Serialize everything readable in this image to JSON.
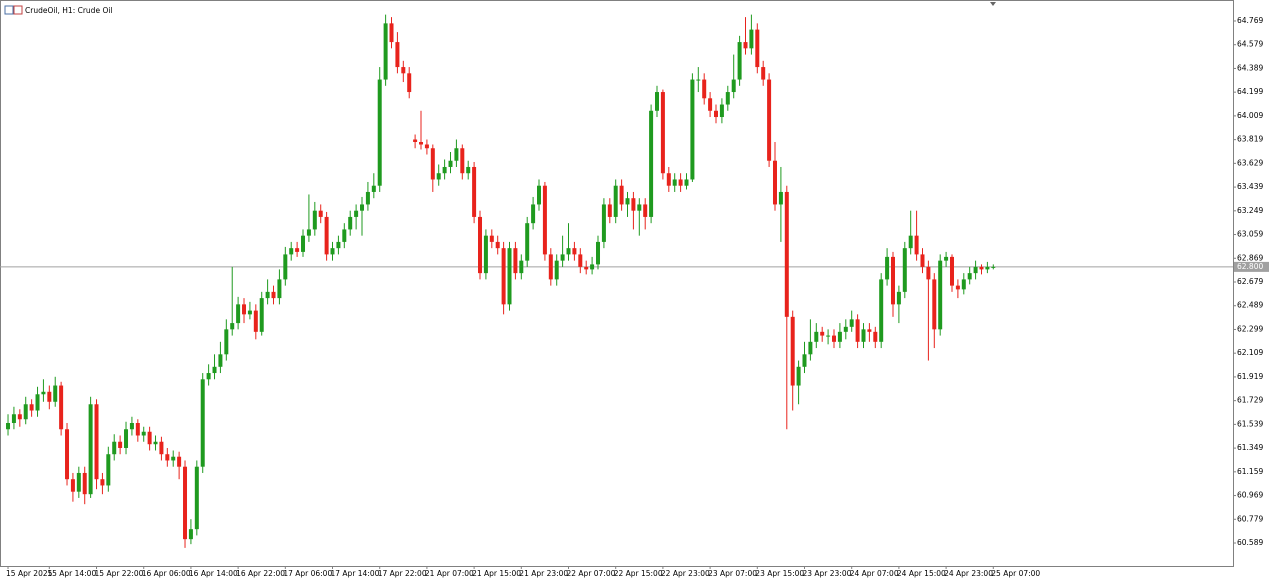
{
  "chart_data": {
    "type": "candlestick",
    "title": "CrudeOil, H1:  Crude Oil",
    "up_color": "#1f9a1f",
    "down_color": "#e8231c",
    "price_line_color": "#a0a0a0",
    "ylim": [
      60.405,
      64.937
    ],
    "xlim": [
      -1.36,
      207.63
    ],
    "yticks": [
      64.769,
      64.579,
      64.389,
      64.199,
      64.009,
      63.819,
      63.629,
      63.439,
      63.249,
      63.059,
      62.869,
      62.679,
      62.489,
      62.299,
      62.109,
      61.919,
      61.729,
      61.539,
      61.349,
      61.159,
      60.969,
      60.779,
      60.589
    ],
    "xticks": [
      {
        "value": 0,
        "label": "15 Apr 2025"
      },
      {
        "value": 7,
        "label": "15 Apr 14:00"
      },
      {
        "value": 15,
        "label": "15 Apr 22:00"
      },
      {
        "value": 23,
        "label": "16 Apr 06:00"
      },
      {
        "value": 31,
        "label": "16 Apr 14:00"
      },
      {
        "value": 39,
        "label": "16 Apr 22:00"
      },
      {
        "value": 47,
        "label": "17 Apr 06:00"
      },
      {
        "value": 55,
        "label": "17 Apr 14:00"
      },
      {
        "value": 63,
        "label": "17 Apr 22:00"
      },
      {
        "value": 71,
        "label": "21 Apr 07:00"
      },
      {
        "value": 79,
        "label": "21 Apr 15:00"
      },
      {
        "value": 87,
        "label": "21 Apr 23:00"
      },
      {
        "value": 95,
        "label": "22 Apr 07:00"
      },
      {
        "value": 103,
        "label": "22 Apr 15:00"
      },
      {
        "value": 111,
        "label": "22 Apr 23:00"
      },
      {
        "value": 119,
        "label": "23 Apr 07:00"
      },
      {
        "value": 127,
        "label": "23 Apr 15:00"
      },
      {
        "value": 135,
        "label": "23 Apr 23:00"
      },
      {
        "value": 143,
        "label": "24 Apr 07:00"
      },
      {
        "value": 151,
        "label": "24 Apr 15:00"
      },
      {
        "value": 159,
        "label": "24 Apr 23:00"
      },
      {
        "value": 167,
        "label": "25 Apr 07:00"
      }
    ],
    "price_line": {
      "value": 62.8,
      "label": "62.800"
    },
    "candles": [
      [
        61.5,
        61.62,
        61.45,
        61.55
      ],
      [
        61.55,
        61.68,
        61.5,
        61.62
      ],
      [
        61.62,
        61.66,
        61.52,
        61.58
      ],
      [
        61.58,
        61.76,
        61.54,
        61.7
      ],
      [
        61.7,
        61.74,
        61.6,
        61.65
      ],
      [
        61.65,
        61.84,
        61.6,
        61.78
      ],
      [
        61.78,
        61.9,
        61.72,
        61.8
      ],
      [
        61.8,
        61.85,
        61.66,
        61.72
      ],
      [
        61.72,
        61.92,
        61.68,
        61.85
      ],
      [
        61.85,
        61.88,
        61.45,
        61.5
      ],
      [
        61.5,
        61.55,
        61.05,
        61.1
      ],
      [
        61.1,
        61.15,
        60.92,
        61.0
      ],
      [
        61.0,
        61.2,
        60.95,
        61.15
      ],
      [
        61.15,
        61.2,
        60.9,
        60.98
      ],
      [
        60.98,
        61.76,
        60.95,
        61.7
      ],
      [
        61.7,
        61.74,
        61.02,
        61.1
      ],
      [
        61.1,
        61.15,
        60.98,
        61.05
      ],
      [
        61.05,
        61.36,
        61.0,
        61.3
      ],
      [
        61.3,
        61.46,
        61.25,
        61.4
      ],
      [
        61.4,
        61.45,
        61.3,
        61.35
      ],
      [
        61.35,
        61.56,
        61.3,
        61.5
      ],
      [
        61.5,
        61.6,
        61.45,
        61.55
      ],
      [
        61.55,
        61.58,
        61.4,
        61.45
      ],
      [
        61.45,
        61.52,
        61.4,
        61.48
      ],
      [
        61.48,
        61.52,
        61.33,
        61.38
      ],
      [
        61.38,
        61.45,
        61.33,
        61.4
      ],
      [
        61.4,
        61.44,
        61.25,
        61.3
      ],
      [
        61.3,
        61.35,
        61.2,
        61.25
      ],
      [
        61.25,
        61.33,
        61.2,
        61.28
      ],
      [
        61.28,
        61.32,
        61.1,
        61.2
      ],
      [
        61.2,
        61.25,
        60.55,
        60.62
      ],
      [
        60.62,
        60.78,
        60.58,
        60.7
      ],
      [
        60.7,
        61.25,
        60.65,
        61.2
      ],
      [
        61.2,
        61.95,
        61.15,
        61.9
      ],
      [
        61.9,
        62.02,
        61.85,
        61.95
      ],
      [
        61.95,
        62.1,
        61.9,
        62.0
      ],
      [
        62.0,
        62.2,
        61.95,
        62.1
      ],
      [
        62.1,
        62.38,
        62.05,
        62.3
      ],
      [
        62.3,
        62.8,
        62.25,
        62.35
      ],
      [
        62.35,
        62.56,
        62.3,
        62.5
      ],
      [
        62.5,
        62.55,
        62.35,
        62.42
      ],
      [
        62.42,
        62.52,
        62.38,
        62.45
      ],
      [
        62.45,
        62.5,
        62.22,
        62.28
      ],
      [
        62.28,
        62.6,
        62.25,
        62.55
      ],
      [
        62.55,
        62.7,
        62.5,
        62.6
      ],
      [
        62.6,
        62.65,
        62.5,
        62.55
      ],
      [
        62.55,
        62.78,
        62.5,
        62.7
      ],
      [
        62.7,
        62.96,
        62.65,
        62.9
      ],
      [
        62.9,
        63.0,
        62.85,
        62.95
      ],
      [
        62.95,
        63.0,
        62.88,
        62.92
      ],
      [
        62.92,
        63.1,
        62.88,
        63.05
      ],
      [
        63.05,
        63.38,
        63.0,
        63.1
      ],
      [
        63.1,
        63.32,
        63.05,
        63.25
      ],
      [
        63.25,
        63.3,
        63.15,
        63.2
      ],
      [
        63.2,
        63.24,
        62.85,
        62.9
      ],
      [
        62.9,
        63.0,
        62.85,
        62.95
      ],
      [
        62.95,
        63.05,
        62.9,
        63.0
      ],
      [
        63.0,
        63.15,
        62.95,
        63.1
      ],
      [
        63.1,
        63.25,
        63.05,
        63.2
      ],
      [
        63.2,
        63.3,
        63.1,
        63.25
      ],
      [
        63.25,
        63.36,
        63.05,
        63.3
      ],
      [
        63.3,
        63.48,
        63.25,
        63.4
      ],
      [
        63.4,
        63.55,
        63.35,
        63.45
      ],
      [
        63.45,
        64.4,
        63.4,
        64.3
      ],
      [
        64.3,
        64.82,
        64.25,
        64.75
      ],
      [
        64.75,
        64.8,
        64.55,
        64.6
      ],
      [
        64.6,
        64.68,
        64.35,
        64.4
      ],
      [
        64.4,
        64.45,
        64.28,
        64.35
      ],
      [
        64.35,
        64.4,
        64.15,
        64.2
      ],
      [
        63.82,
        63.86,
        63.75,
        63.8
      ],
      [
        63.8,
        64.05,
        63.74,
        63.78
      ],
      [
        63.78,
        63.82,
        63.7,
        63.75
      ],
      [
        63.75,
        63.78,
        63.4,
        63.5
      ],
      [
        63.5,
        63.62,
        63.45,
        63.55
      ],
      [
        63.55,
        63.66,
        63.5,
        63.6
      ],
      [
        63.6,
        63.72,
        63.55,
        63.65
      ],
      [
        63.65,
        63.82,
        63.6,
        63.75
      ],
      [
        63.75,
        63.78,
        63.5,
        63.55
      ],
      [
        63.55,
        63.65,
        63.5,
        63.6
      ],
      [
        63.6,
        63.64,
        63.15,
        63.2
      ],
      [
        63.2,
        63.25,
        62.7,
        62.75
      ],
      [
        62.75,
        63.1,
        62.7,
        63.05
      ],
      [
        63.05,
        63.1,
        62.95,
        63.0
      ],
      [
        63.0,
        63.05,
        62.9,
        62.95
      ],
      [
        62.95,
        63.0,
        62.42,
        62.5
      ],
      [
        62.5,
        63.0,
        62.45,
        62.95
      ],
      [
        62.95,
        63.0,
        62.7,
        62.75
      ],
      [
        62.75,
        62.9,
        62.7,
        62.85
      ],
      [
        62.85,
        63.2,
        62.8,
        63.15
      ],
      [
        63.15,
        63.36,
        63.1,
        63.3
      ],
      [
        63.3,
        63.5,
        63.25,
        63.45
      ],
      [
        63.45,
        63.48,
        62.85,
        62.9
      ],
      [
        62.9,
        62.95,
        62.65,
        62.7
      ],
      [
        62.7,
        62.9,
        62.65,
        62.85
      ],
      [
        62.85,
        63.05,
        62.8,
        62.9
      ],
      [
        62.9,
        63.15,
        62.85,
        62.95
      ],
      [
        62.95,
        63.0,
        62.85,
        62.9
      ],
      [
        62.9,
        62.95,
        62.75,
        62.8
      ],
      [
        62.8,
        62.85,
        62.74,
        62.78
      ],
      [
        62.78,
        62.88,
        62.74,
        62.82
      ],
      [
        62.82,
        63.05,
        62.78,
        63.0
      ],
      [
        63.0,
        63.35,
        62.95,
        63.3
      ],
      [
        63.3,
        63.35,
        63.15,
        63.2
      ],
      [
        63.2,
        63.5,
        63.15,
        63.45
      ],
      [
        63.45,
        63.5,
        63.25,
        63.3
      ],
      [
        63.3,
        63.4,
        63.2,
        63.35
      ],
      [
        63.35,
        63.4,
        63.1,
        63.25
      ],
      [
        63.25,
        63.35,
        63.05,
        63.3
      ],
      [
        63.3,
        63.35,
        63.1,
        63.2
      ],
      [
        63.2,
        64.1,
        63.15,
        64.05
      ],
      [
        64.05,
        64.25,
        64.0,
        64.2
      ],
      [
        64.2,
        64.22,
        63.5,
        63.55
      ],
      [
        63.55,
        63.6,
        63.4,
        63.45
      ],
      [
        63.45,
        63.55,
        63.4,
        63.5
      ],
      [
        63.5,
        63.55,
        63.4,
        63.45
      ],
      [
        63.45,
        63.55,
        63.42,
        63.5
      ],
      [
        63.5,
        64.35,
        63.48,
        64.3
      ],
      [
        64.3,
        64.4,
        64.2,
        64.3
      ],
      [
        64.3,
        64.35,
        64.1,
        64.15
      ],
      [
        64.15,
        64.2,
        64.0,
        64.05
      ],
      [
        64.05,
        64.1,
        63.95,
        64.0
      ],
      [
        64.0,
        64.15,
        63.95,
        64.1
      ],
      [
        64.1,
        64.25,
        64.05,
        64.2
      ],
      [
        64.2,
        64.5,
        64.15,
        64.3
      ],
      [
        64.3,
        64.65,
        64.25,
        64.6
      ],
      [
        64.6,
        64.8,
        64.5,
        64.55
      ],
      [
        64.55,
        64.82,
        64.5,
        64.7
      ],
      [
        64.7,
        64.75,
        64.35,
        64.4
      ],
      [
        64.4,
        64.45,
        64.25,
        64.3
      ],
      [
        64.3,
        64.35,
        63.6,
        63.65
      ],
      [
        63.65,
        63.8,
        63.25,
        63.3
      ],
      [
        63.3,
        63.6,
        63.0,
        63.4
      ],
      [
        63.4,
        63.45,
        61.5,
        62.4
      ],
      [
        62.4,
        62.45,
        61.65,
        61.85
      ],
      [
        61.85,
        62.05,
        61.7,
        62.0
      ],
      [
        62.0,
        62.2,
        61.95,
        62.1
      ],
      [
        62.1,
        62.38,
        62.05,
        62.2
      ],
      [
        62.2,
        62.35,
        62.15,
        62.28
      ],
      [
        62.28,
        62.32,
        62.2,
        62.25
      ],
      [
        62.25,
        62.3,
        62.18,
        62.25
      ],
      [
        62.25,
        62.3,
        62.15,
        62.2
      ],
      [
        62.2,
        62.35,
        62.15,
        62.28
      ],
      [
        62.28,
        62.38,
        62.22,
        62.32
      ],
      [
        62.32,
        62.45,
        62.28,
        62.38
      ],
      [
        62.38,
        62.42,
        62.15,
        62.2
      ],
      [
        62.2,
        62.35,
        62.15,
        62.3
      ],
      [
        62.3,
        62.35,
        62.2,
        62.28
      ],
      [
        62.28,
        62.32,
        62.15,
        62.2
      ],
      [
        62.2,
        62.75,
        62.15,
        62.7
      ],
      [
        62.7,
        62.95,
        62.65,
        62.88
      ],
      [
        62.88,
        62.92,
        62.4,
        62.5
      ],
      [
        62.5,
        62.65,
        62.35,
        62.6
      ],
      [
        62.6,
        63.0,
        62.55,
        62.95
      ],
      [
        62.95,
        63.25,
        62.9,
        63.05
      ],
      [
        63.05,
        63.25,
        62.85,
        62.9
      ],
      [
        62.9,
        62.95,
        62.75,
        62.8
      ],
      [
        62.8,
        62.85,
        62.05,
        62.7
      ],
      [
        62.7,
        62.75,
        62.15,
        62.3
      ],
      [
        62.3,
        62.9,
        62.25,
        62.85
      ],
      [
        62.85,
        62.92,
        62.8,
        62.88
      ],
      [
        62.88,
        62.9,
        62.6,
        62.65
      ],
      [
        62.65,
        62.7,
        62.55,
        62.62
      ],
      [
        62.62,
        62.75,
        62.58,
        62.7
      ],
      [
        62.7,
        62.8,
        62.66,
        62.75
      ],
      [
        62.75,
        62.85,
        62.7,
        62.8
      ],
      [
        62.8,
        62.82,
        62.74,
        62.78
      ],
      [
        62.78,
        62.84,
        62.75,
        62.8
      ],
      [
        62.8,
        62.82,
        62.78,
        62.8
      ]
    ]
  }
}
